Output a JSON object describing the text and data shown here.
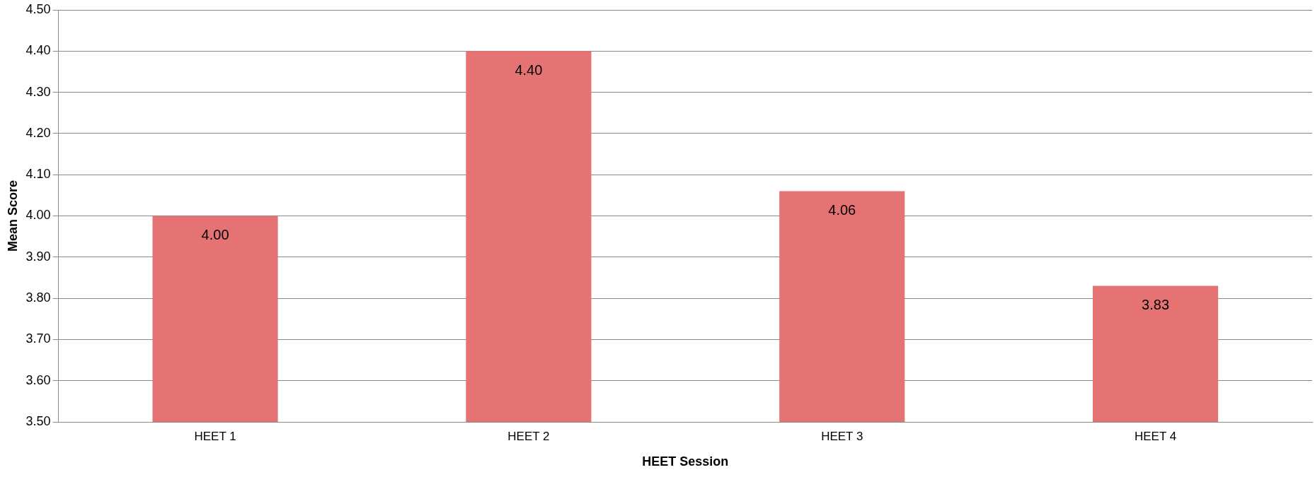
{
  "chart_data": {
    "type": "bar",
    "xlabel": "HEET Session",
    "ylabel": "Mean Score",
    "categories": [
      "HEET 1",
      "HEET 2",
      "HEET 3",
      "HEET 4"
    ],
    "values": [
      4.0,
      4.4,
      4.06,
      3.83
    ],
    "value_labels": [
      "4.00",
      "4.40",
      "4.06",
      "3.83"
    ],
    "color": "#e57373",
    "ylim": [
      3.5,
      4.5
    ],
    "yticks": [
      {
        "value": 3.5,
        "label": "3.50"
      },
      {
        "value": 3.6,
        "label": "3.60"
      },
      {
        "value": 3.7,
        "label": "3.70"
      },
      {
        "value": 3.8,
        "label": "3.80"
      },
      {
        "value": 3.9,
        "label": "3.90"
      },
      {
        "value": 4.0,
        "label": "4.00"
      },
      {
        "value": 4.1,
        "label": "4.10"
      },
      {
        "value": 4.2,
        "label": "4.20"
      },
      {
        "value": 4.3,
        "label": "4.30"
      },
      {
        "value": 4.4,
        "label": "4.40"
      },
      {
        "value": 4.5,
        "label": "4.50"
      }
    ],
    "grid": "y",
    "legend": false
  }
}
